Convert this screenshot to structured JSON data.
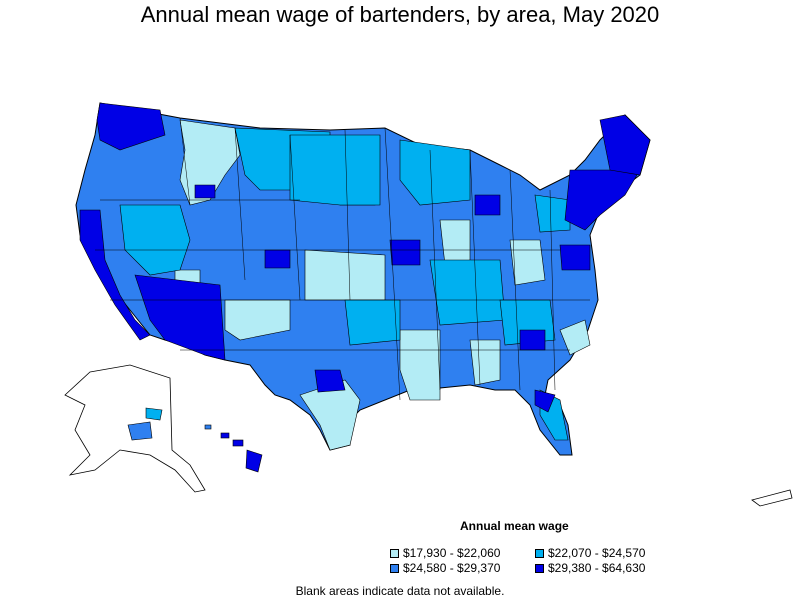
{
  "title": "Annual mean wage of bartenders, by area, May 2020",
  "legend": {
    "title": "Annual mean wage",
    "items": [
      {
        "label": "$17,930 - $22,060",
        "color": "#b3ecf5"
      },
      {
        "label": "$22,070 - $24,570",
        "color": "#00b0f0"
      },
      {
        "label": "$24,580 - $29,370",
        "color": "#2f80f0"
      },
      {
        "label": "$29,380 - $64,630",
        "color": "#0000e6"
      }
    ]
  },
  "footnote": "Blank areas indicate data not available.",
  "colors": {
    "border": "#000000",
    "background": "#ffffff"
  }
}
